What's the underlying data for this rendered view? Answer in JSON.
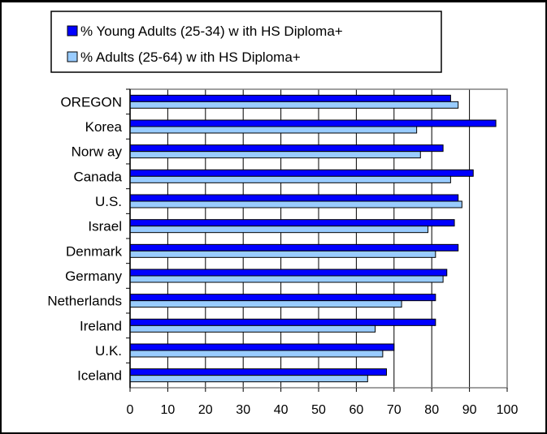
{
  "chart_data": {
    "type": "bar",
    "orientation": "horizontal",
    "categories": [
      "OREGON",
      "Korea",
      "Norw ay",
      "Canada",
      "U.S.",
      "Israel",
      "Denmark",
      "Germany",
      "Netherlands",
      "Ireland",
      "U.K.",
      "Iceland"
    ],
    "series": [
      {
        "name": "% Young Adults (25-34) w ith HS Diploma+",
        "color": "#0000ff",
        "values": [
          85,
          97,
          83,
          91,
          87,
          86,
          87,
          84,
          81,
          81,
          70,
          68
        ]
      },
      {
        "name": "% Adults (25-64) w ith HS Diploma+",
        "color": "#99ccff",
        "values": [
          87,
          76,
          77,
          85,
          88,
          79,
          81,
          83,
          72,
          65,
          67,
          63
        ]
      }
    ],
    "xlim": [
      0,
      100
    ],
    "xticks": [
      0,
      10,
      20,
      30,
      40,
      50,
      60,
      70,
      80,
      90,
      100
    ],
    "xlabel": "",
    "ylabel": "",
    "title": "",
    "grid": "vertical",
    "legend_position": "top"
  }
}
